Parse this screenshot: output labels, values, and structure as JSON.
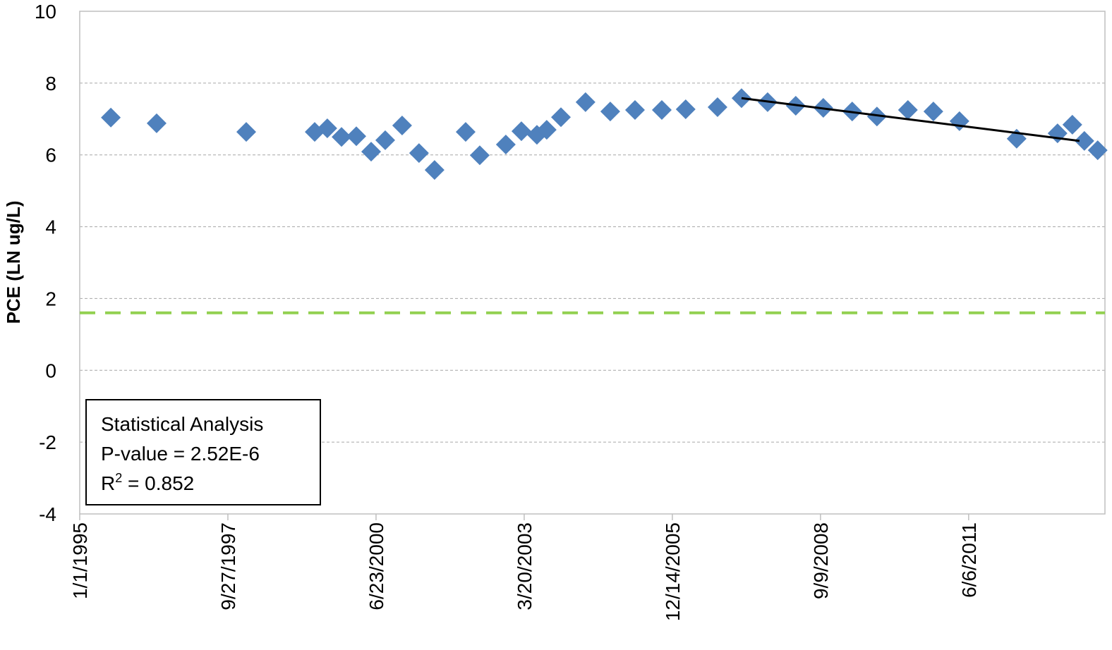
{
  "chart_data": {
    "type": "scatter",
    "y_label": "PCE (LN ug/L)",
    "x": [
      34910,
      35219,
      35824,
      36286,
      36371,
      36467,
      36567,
      36667,
      36762,
      36876,
      36990,
      37095,
      37305,
      37400,
      37576,
      37681,
      37786,
      37852,
      37948,
      38114,
      38281,
      38448,
      38629,
      38790,
      39005,
      39167,
      39343,
      39533,
      39719,
      39914,
      40081,
      40290,
      40462,
      40638,
      41024,
      41300,
      41400,
      41481,
      41571
    ],
    "values": [
      7.04,
      6.88,
      6.64,
      6.64,
      6.74,
      6.5,
      6.52,
      6.09,
      6.41,
      6.82,
      6.05,
      5.58,
      6.64,
      5.99,
      6.29,
      6.66,
      6.56,
      6.7,
      7.05,
      7.47,
      7.21,
      7.25,
      7.25,
      7.27,
      7.33,
      7.58,
      7.47,
      7.37,
      7.31,
      7.21,
      7.07,
      7.25,
      7.21,
      6.94,
      6.45,
      6.6,
      6.84,
      6.39,
      6.13
    ],
    "color": "#4f81bd",
    "trend_line": {
      "x": [
        39167,
        41448
      ],
      "values": [
        7.58,
        6.39
      ],
      "color": "#000000"
    },
    "threshold": {
      "value": 1.6,
      "color": "#92d050"
    },
    "xlim": [
      34700,
      41620
    ],
    "xticks": [
      {
        "value": 34700,
        "label": "1/1/1995"
      },
      {
        "value": 35700,
        "label": "9/27/1997"
      },
      {
        "value": 36700,
        "label": "6/23/2000"
      },
      {
        "value": 37700,
        "label": "3/20/2003"
      },
      {
        "value": 38700,
        "label": "12/14/2005"
      },
      {
        "value": 39700,
        "label": "9/9/2008"
      },
      {
        "value": 40700,
        "label": "6/6/2011"
      }
    ],
    "ylim": [
      -4,
      10
    ],
    "yticks": [
      -4,
      -2,
      0,
      2,
      4,
      6,
      8,
      10
    ],
    "grid": true,
    "annotation": {
      "lines": [
        "Statistical Analysis",
        "P-value = 2.52E-6"
      ],
      "r2": {
        "prefix": "R",
        "sup": "2",
        "suffix": " = 0.852"
      }
    }
  }
}
